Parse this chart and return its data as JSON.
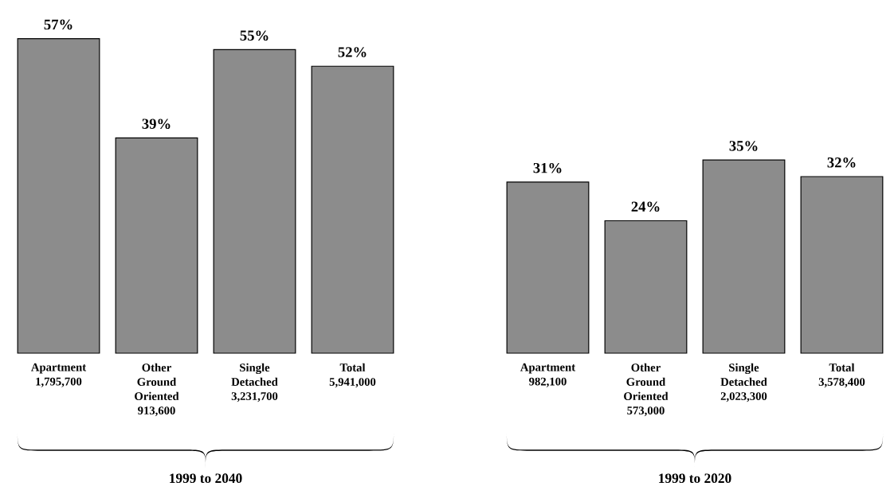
{
  "chart_data": [
    {
      "type": "bar",
      "categories": [
        "Apartment 1,795,700",
        "Other Ground Oriented 913,600",
        "Single Detached 3,231,700",
        "Total 5,941,000"
      ],
      "values": [
        57,
        39,
        55,
        52
      ],
      "value_labels": [
        "57%",
        "39%",
        "55%",
        "52%"
      ],
      "color": "#8c8c8c",
      "annotations": [
        "1999 to 2040"
      ]
    },
    {
      "type": "bar",
      "categories": [
        "Apartment 982,100",
        "Other Ground Oriented 573,000",
        "Single Detached 2,023,300",
        "Total 3,578,400"
      ],
      "values": [
        31,
        24,
        35,
        32
      ],
      "value_labels": [
        "31%",
        "24%",
        "35%",
        "32%"
      ],
      "color": "#8c8c8c",
      "annotations": [
        "1999 to 2020"
      ]
    }
  ]
}
